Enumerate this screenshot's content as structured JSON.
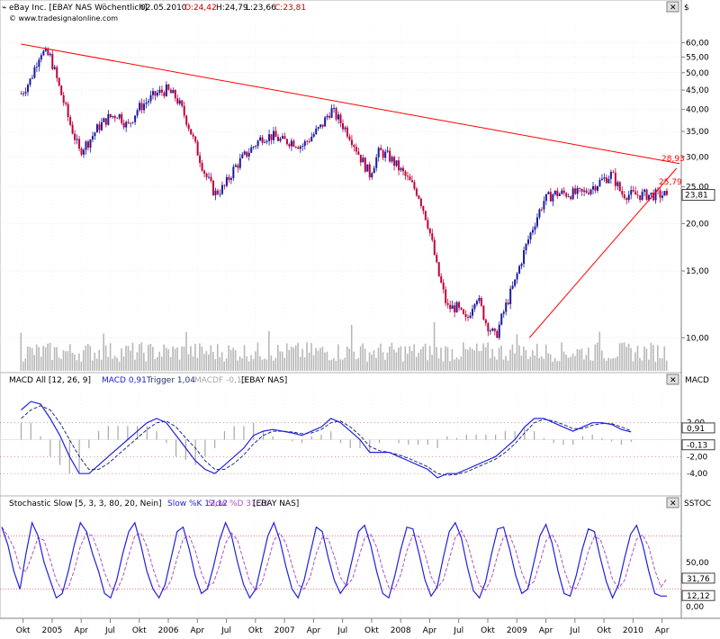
{
  "header": {
    "symbol": "eBay Inc. [EBAY NAS  Wöchentlich]",
    "date": "02.05.2010",
    "open": "O:24,42",
    "high": "H:24,79",
    "low": "L:23,66",
    "close": "C:23,81",
    "source": "© www.tradesignalonline.com",
    "currency": "$"
  },
  "colors": {
    "bull": "#1a1aa0",
    "bear": "#c0003c",
    "trend": "#ff0000",
    "macd": "#2020e0",
    "trigger": "#203070",
    "histogram": "#a8a8a8",
    "slowk": "#2020e0",
    "slowd": "#b050c0",
    "grid": "#cc3333"
  },
  "chart_data": [
    {
      "type": "candlestick",
      "scale": "log",
      "ylim": [
        8.5,
        66
      ],
      "yticks": [
        "60,00",
        "55,00",
        "50,00",
        "45,00",
        "40,00",
        "35,00",
        "30,00",
        "25,00",
        "20,00",
        "15,00",
        "10,00"
      ],
      "ytick_values": [
        60,
        55,
        50,
        45,
        40,
        35,
        30,
        25,
        20,
        15,
        10
      ],
      "xlabels": [
        "Okt",
        "2005",
        "Apr",
        "Jul",
        "Okt",
        "2006",
        "Apr",
        "Jul",
        "Okt",
        "2007",
        "Apr",
        "Jul",
        "Okt",
        "2008",
        "Apr",
        "Jul",
        "Okt",
        "2009",
        "Apr",
        "Jul",
        "Okt",
        "2010",
        "Apr"
      ],
      "x_months": [
        -3,
        0,
        3,
        6,
        9,
        12,
        15,
        18,
        21,
        24,
        27,
        30,
        33,
        36,
        39,
        42,
        45,
        48,
        51,
        54,
        57,
        60,
        63
      ],
      "x_range_months": [
        -5.2,
        64.8
      ],
      "closes_monthly": [
        44,
        48,
        57,
        55,
        45,
        37,
        31,
        33,
        36,
        38,
        39,
        36,
        40,
        42,
        44,
        45,
        43,
        38,
        32,
        27,
        24,
        25,
        28,
        30,
        32,
        34,
        34,
        33,
        33,
        32,
        34,
        36,
        40,
        37,
        34,
        30,
        27,
        31,
        30,
        28,
        26,
        24,
        20,
        15,
        12,
        12,
        11,
        13,
        11,
        10,
        12,
        14,
        17,
        20,
        23,
        24,
        24,
        24,
        24,
        25,
        26,
        27,
        24,
        23.81
      ],
      "trendlines": [
        {
          "from": {
            "month": -3.2,
            "price": 59.5
          },
          "to": {
            "month": 64.8,
            "price": 28.8
          }
        },
        {
          "from": {
            "month": 49.3,
            "price": 10.0
          },
          "to": {
            "month": 64.5,
            "price": 28.0
          }
        }
      ],
      "markers": [
        {
          "label": "28,93",
          "value": 28.93
        },
        {
          "label": "25,79",
          "value": 25.79
        },
        {
          "label": "23,81",
          "value": 23.81
        }
      ]
    },
    {
      "type": "line",
      "title": "MACD All [12, 26, 9]",
      "labels": {
        "macd": "MACD 0,91",
        "trigger": "Trigger 1,04",
        "macdf": "MACDF -0,13",
        "src": "[EBAY NAS]",
        "axis": "MACD"
      },
      "yticks": [
        "2,00",
        "-2,00",
        "-4,00"
      ],
      "ytick_values": [
        2,
        -2,
        -4
      ],
      "ylim": [
        -6,
        6
      ],
      "markers": [
        {
          "label": "0,91",
          "value": 0.91
        },
        {
          "label": "-0,13",
          "value": -0.13
        }
      ],
      "macd_monthly": [
        3.5,
        4.5,
        4.2,
        2.5,
        0.5,
        -2,
        -4,
        -4,
        -3,
        -2,
        -1,
        0,
        1,
        2,
        2.5,
        2,
        0.5,
        -1,
        -2.5,
        -3.5,
        -4,
        -3,
        -2,
        -1,
        0.5,
        1,
        1.2,
        1,
        0.8,
        0.5,
        1,
        1.5,
        2.5,
        2,
        1,
        0,
        -1.5,
        -1.5,
        -1.5,
        -2,
        -2.5,
        -3,
        -3.5,
        -4.5,
        -4,
        -4,
        -3.5,
        -3,
        -2.5,
        -2,
        -1,
        0,
        1.5,
        2.5,
        2.5,
        2,
        1.5,
        1,
        1.5,
        2,
        2,
        1.8,
        1.2,
        0.91
      ],
      "trigger_monthly": [
        2.5,
        3.5,
        4,
        3.5,
        2,
        0,
        -2,
        -3.5,
        -3.5,
        -2.8,
        -1.8,
        -0.8,
        0.2,
        1.2,
        2,
        2.2,
        1.5,
        0.2,
        -1,
        -2.5,
        -3.5,
        -3.5,
        -2.8,
        -1.8,
        -0.5,
        0.5,
        1,
        1,
        0.9,
        0.7,
        0.8,
        1.2,
        2,
        2.2,
        1.5,
        0.5,
        -0.8,
        -1.3,
        -1.5,
        -1.8,
        -2.2,
        -2.7,
        -3.2,
        -4,
        -4.2,
        -4.1,
        -3.8,
        -3.3,
        -2.8,
        -2.3,
        -1.5,
        -0.5,
        0.8,
        2,
        2.4,
        2.2,
        1.8,
        1.3,
        1.3,
        1.7,
        1.9,
        1.9,
        1.5,
        1.04
      ]
    },
    {
      "type": "line",
      "title": "Stochastic Slow [5, 3, 3, 80, 20, Nein]",
      "labels": {
        "k": "Slow %K 12,12",
        "d": "Slow %D 31,76",
        "src": "[EBAY NAS]",
        "axis": "SSTOC"
      },
      "yticks": [
        "50,00",
        "0,00"
      ],
      "ytick_values": [
        50,
        0
      ],
      "ylim": [
        -8,
        108
      ],
      "levels": [
        80,
        20
      ],
      "markers": [
        {
          "label": "31,76",
          "value": 31.76
        },
        {
          "label": "12,12",
          "value": 12.12
        }
      ],
      "k_weekly": [
        90,
        70,
        40,
        20,
        60,
        95,
        80,
        50,
        30,
        10,
        15,
        40,
        70,
        95,
        85,
        60,
        40,
        15,
        10,
        30,
        60,
        85,
        95,
        70,
        40,
        20,
        10,
        25,
        55,
        85,
        90,
        65,
        35,
        15,
        20,
        45,
        75,
        95,
        80,
        50,
        25,
        10,
        20,
        50,
        80,
        95,
        75,
        45,
        20,
        10,
        30,
        60,
        90,
        85,
        55,
        30,
        15,
        25,
        55,
        85,
        92,
        70,
        40,
        15,
        10,
        35,
        65,
        90,
        88,
        60,
        30,
        12,
        22,
        55,
        85,
        95,
        78,
        45,
        18,
        10,
        28,
        60,
        88,
        90,
        65,
        35,
        15,
        20,
        50,
        80,
        93,
        72,
        40,
        15,
        12,
        35,
        65,
        88,
        85,
        55,
        28,
        10,
        25,
        55,
        82,
        92,
        70,
        40,
        15,
        12,
        12
      ]
    }
  ]
}
